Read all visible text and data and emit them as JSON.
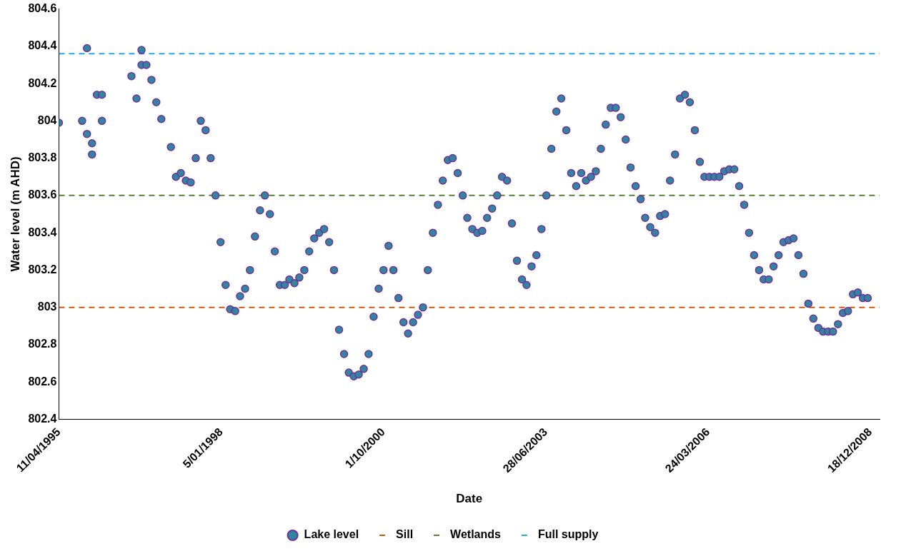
{
  "chart_data": {
    "type": "scatter",
    "xlabel": "Date",
    "ylabel": "Water level (m AHD)",
    "xlim": [
      "1995-04-11",
      "2009-02-12"
    ],
    "xticks": [
      {
        "value": "1995-04-11",
        "label": "11/04/1995"
      },
      {
        "value": "1998-01-05",
        "label": "5/01/1998"
      },
      {
        "value": "2000-10-01",
        "label": "1/10/2000"
      },
      {
        "value": "2003-06-28",
        "label": "28/06/2003"
      },
      {
        "value": "2006-03-24",
        "label": "24/03/2006"
      },
      {
        "value": "2008-12-18",
        "label": "18/12/2008"
      }
    ],
    "ylim": [
      802.4,
      804.6
    ],
    "yticks": [
      802.4,
      802.6,
      802.8,
      803,
      803.2,
      803.4,
      803.6,
      803.8,
      804,
      804.2,
      804.4,
      804.6
    ],
    "grid": false,
    "legend": "bottom",
    "marker": "circle",
    "series": [
      {
        "name": "Lake level",
        "color": "#7030a0",
        "x": [
          "1995-04-11",
          "1995-09",
          "1995-10",
          "1995-10",
          "1995-11",
          "1995-11",
          "1995-12",
          "1996-01",
          "1996-01",
          "1996-07",
          "1996-08",
          "1996-09",
          "1996-09",
          "1996-10",
          "1996-11",
          "1996-12",
          "1997-01",
          "1997-03",
          "1997-04",
          "1997-05",
          "1997-06",
          "1997-07",
          "1997-08",
          "1997-09",
          "1997-10",
          "1997-11",
          "1997-12",
          "1998-01",
          "1998-02",
          "1998-03",
          "1998-04",
          "1998-05",
          "1998-06",
          "1998-07",
          "1998-08",
          "1998-09",
          "1998-10",
          "1998-11",
          "1998-12",
          "1999-01",
          "1999-02",
          "1999-03",
          "1999-04",
          "1999-05",
          "1999-06",
          "1999-07",
          "1999-08",
          "1999-09",
          "1999-10",
          "1999-11",
          "1999-12",
          "2000-01",
          "2000-02",
          "2000-03",
          "2000-04",
          "2000-05",
          "2000-06",
          "2000-07",
          "2000-08",
          "2000-09",
          "2000-10",
          "2000-11",
          "2000-12",
          "2001-01",
          "2001-02",
          "2001-03",
          "2001-04",
          "2001-05",
          "2001-06",
          "2001-07",
          "2001-08",
          "2001-09",
          "2001-10",
          "2001-11",
          "2001-12",
          "2002-01",
          "2002-02",
          "2002-03",
          "2002-04",
          "2002-05",
          "2002-06",
          "2002-07",
          "2002-08",
          "2002-09",
          "2002-10",
          "2002-11",
          "2002-12",
          "2003-01",
          "2003-02",
          "2003-03",
          "2003-04",
          "2003-05",
          "2003-06",
          "2003-07",
          "2003-08",
          "2003-09",
          "2003-10",
          "2003-11",
          "2003-12",
          "2004-01",
          "2004-02",
          "2004-03",
          "2004-04",
          "2004-05",
          "2004-06",
          "2004-07",
          "2004-08",
          "2004-09",
          "2004-10",
          "2004-11",
          "2004-12",
          "2005-01",
          "2005-02",
          "2005-03",
          "2005-04",
          "2005-05",
          "2005-06",
          "2005-07",
          "2005-08",
          "2005-09",
          "2005-10",
          "2005-11",
          "2005-12",
          "2006-01",
          "2006-02",
          "2006-03",
          "2006-04",
          "2006-05",
          "2006-06",
          "2006-07",
          "2006-08",
          "2006-09",
          "2006-10",
          "2006-11",
          "2006-12",
          "2007-01",
          "2007-02",
          "2007-03",
          "2007-04",
          "2007-05",
          "2007-06",
          "2007-07",
          "2007-08",
          "2007-09",
          "2007-10",
          "2007-11",
          "2007-12",
          "2008-01",
          "2008-02",
          "2008-03",
          "2008-04",
          "2008-05",
          "2008-06",
          "2008-07",
          "2008-08",
          "2008-09",
          "2008-10",
          "2008-11",
          "2008-12"
        ],
        "values": [
          803.99,
          804.0,
          803.93,
          804.39,
          803.88,
          803.82,
          804.14,
          804.0,
          804.14,
          804.24,
          804.12,
          804.3,
          804.38,
          804.3,
          804.22,
          804.1,
          804.01,
          803.86,
          803.7,
          803.72,
          803.68,
          803.67,
          803.8,
          804.0,
          803.95,
          803.8,
          803.6,
          803.35,
          803.12,
          802.99,
          802.98,
          803.06,
          803.1,
          803.2,
          803.38,
          803.52,
          803.6,
          803.5,
          803.3,
          803.12,
          803.12,
          803.15,
          803.13,
          803.16,
          803.2,
          803.3,
          803.37,
          803.4,
          803.42,
          803.35,
          803.2,
          802.88,
          802.75,
          802.65,
          802.63,
          802.64,
          802.67,
          802.75,
          802.95,
          803.1,
          803.2,
          803.33,
          803.2,
          803.05,
          802.92,
          802.86,
          802.92,
          802.96,
          803.0,
          803.2,
          803.4,
          803.55,
          803.68,
          803.79,
          803.8,
          803.72,
          803.6,
          803.48,
          803.42,
          803.4,
          803.41,
          803.48,
          803.53,
          803.6,
          803.7,
          803.68,
          803.45,
          803.25,
          803.15,
          803.12,
          803.22,
          803.28,
          803.42,
          803.6,
          803.85,
          804.05,
          804.12,
          803.95,
          803.72,
          803.65,
          803.72,
          803.68,
          803.7,
          803.73,
          803.85,
          803.98,
          804.07,
          804.07,
          804.02,
          803.9,
          803.75,
          803.65,
          803.58,
          803.48,
          803.43,
          803.4,
          803.49,
          803.5,
          803.68,
          803.82,
          804.12,
          804.14,
          804.1,
          803.95,
          803.78,
          803.7,
          803.7,
          803.7,
          803.7,
          803.73,
          803.74,
          803.74,
          803.65,
          803.55,
          803.4,
          803.28,
          803.2,
          803.15,
          803.15,
          803.22,
          803.28,
          803.35,
          803.36,
          803.37,
          803.28,
          803.18,
          803.02,
          802.94,
          802.89,
          802.87,
          802.87,
          802.87,
          802.91,
          802.97,
          802.98,
          803.07,
          803.08,
          803.05,
          803.05
        ]
      }
    ],
    "ref_lines": [
      {
        "axis": "y",
        "value": 803,
        "label": "Sill",
        "color": "#c55a11",
        "line_style": "dashed"
      },
      {
        "axis": "y",
        "value": 803.6,
        "label": "Wetlands",
        "color": "#548235",
        "line_style": "dashed"
      },
      {
        "axis": "y",
        "value": 804.36,
        "label": "Full supply",
        "color": "#29a8e0",
        "line_style": "dashed"
      }
    ]
  }
}
